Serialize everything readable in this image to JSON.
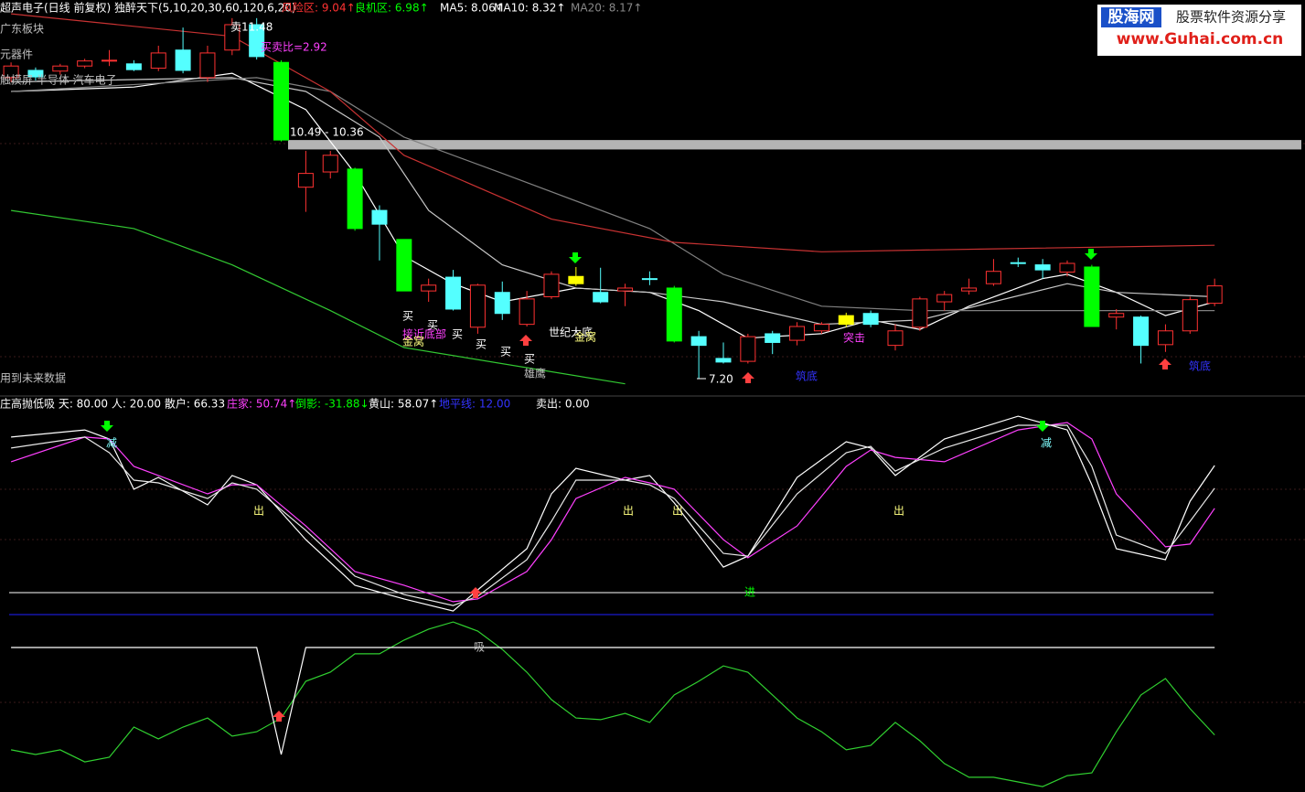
{
  "header": {
    "items": [
      "超声电子(日线 前复权) 独醉天下(5,10,20,30,60,120,6,20)",
      "风险区: 9.04↑",
      "良机区: 6.98↑",
      "MA5: 8.06↑",
      "MA10: 8.32↑",
      "MA20: 8.17↑"
    ]
  },
  "logo": {
    "name": "股海网",
    "slogan": "股票软件资源分享",
    "url": "www.Guhai.com.cn"
  },
  "chart_data": [
    {
      "type": "candlestick",
      "xlim": [
        -0.45,
        52.68
      ],
      "ylim": [
        7.0,
        12.42
      ],
      "open": [
        11.35,
        11.45,
        11.44,
        11.51,
        11.58,
        11.54,
        11.48,
        11.73,
        11.35,
        11.73,
        12.08,
        11.56,
        9.84,
        10.05,
        10.09,
        9.52,
        9.12,
        8.41,
        8.6,
        7.91,
        8.39,
        7.95,
        8.33,
        8.61,
        8.39,
        8.41,
        8.58,
        8.45,
        7.78,
        7.48,
        7.44,
        7.82,
        7.73,
        7.86,
        7.95,
        8.1,
        7.66,
        7.91,
        8.26,
        8.41,
        8.51,
        8.8,
        8.77,
        8.67,
        8.74,
        8.05,
        8.05,
        7.67,
        7.86,
        8.24
      ],
      "high": [
        11.56,
        11.49,
        11.54,
        11.61,
        11.73,
        11.59,
        11.79,
        12.04,
        11.79,
        12.17,
        12.17,
        11.59,
        10.34,
        10.34,
        10.11,
        9.59,
        9.12,
        8.58,
        8.7,
        8.51,
        8.54,
        8.41,
        8.68,
        8.74,
        8.73,
        8.51,
        8.68,
        8.48,
        7.86,
        7.7,
        7.82,
        7.86,
        7.98,
        7.98,
        8.11,
        8.14,
        7.95,
        8.33,
        8.41,
        8.58,
        8.85,
        8.87,
        8.85,
        8.83,
        8.77,
        8.16,
        8.07,
        7.95,
        8.33,
        8.58
      ],
      "low": [
        11.29,
        11.31,
        11.39,
        11.48,
        11.51,
        11.44,
        11.44,
        11.41,
        11.29,
        11.66,
        11.6,
        10.47,
        9.5,
        9.96,
        9.24,
        8.83,
        8.41,
        8.26,
        8.14,
        7.82,
        8.01,
        7.92,
        8.3,
        8.48,
        8.24,
        8.2,
        8.49,
        7.7,
        7.2,
        7.41,
        7.41,
        7.54,
        7.66,
        7.82,
        7.91,
        7.91,
        7.59,
        7.86,
        8.14,
        8.36,
        8.48,
        8.74,
        8.58,
        8.61,
        7.92,
        7.88,
        7.41,
        7.57,
        7.82,
        8.2
      ],
      "close": [
        11.51,
        11.36,
        11.51,
        11.58,
        11.59,
        11.46,
        11.69,
        11.45,
        11.69,
        12.08,
        11.64,
        10.49,
        10.03,
        10.28,
        9.27,
        9.33,
        8.41,
        8.49,
        8.16,
        8.49,
        8.1,
        8.3,
        8.64,
        8.51,
        8.26,
        8.45,
        8.58,
        7.72,
        7.66,
        7.43,
        7.78,
        7.7,
        7.92,
        7.95,
        8.07,
        7.95,
        7.86,
        8.3,
        8.36,
        8.45,
        8.68,
        8.8,
        8.7,
        8.79,
        7.92,
        8.1,
        7.66,
        7.86,
        8.29,
        8.48
      ],
      "colors": [
        "#ff3232",
        "#54ffff",
        "#ff3232",
        "#ff3232",
        "#ff3232",
        "#54ffff",
        "#ff3232",
        "#54ffff",
        "#ff3232",
        "#ff3232",
        "#54ffff",
        "#00ff00",
        "#ff3232",
        "#ff3232",
        "#00ff00",
        "#54ffff",
        "#00ff00",
        "#ff3232",
        "#54ffff",
        "#ff3232",
        "#54ffff",
        "#ff3232",
        "#ff3232",
        "#ffff00",
        "#54ffff",
        "#ff3232",
        "#54ffff",
        "#00ff00",
        "#54ffff",
        "#54ffff",
        "#ff3232",
        "#54ffff",
        "#ff3232",
        "#ff3232",
        "#ffff00",
        "#54ffff",
        "#ff3232",
        "#ff3232",
        "#ff3232",
        "#ff3232",
        "#ff3232",
        "#54ffff",
        "#54ffff",
        "#ff3232",
        "#00ff00",
        "#ff3232",
        "#54ffff",
        "#ff3232",
        "#ff3232",
        "#ff3232"
      ],
      "lines": [
        {
          "color": "#ffffff",
          "x": [
            0,
            5,
            9,
            12,
            14,
            16,
            18,
            20,
            23,
            26,
            28,
            30,
            33,
            35,
            37,
            39,
            42,
            43,
            45,
            47,
            49
          ],
          "values": [
            11.16,
            11.22,
            11.41,
            10.91,
            10.03,
            8.89,
            8.51,
            8.26,
            8.45,
            8.39,
            8.14,
            7.76,
            7.82,
            8.01,
            7.88,
            8.2,
            8.58,
            8.64,
            8.39,
            8.07,
            8.26
          ]
        },
        {
          "color": "#c8c8c8",
          "x": [
            0,
            9,
            12,
            15,
            17,
            20,
            23,
            26,
            29,
            33,
            37,
            40,
            43,
            45,
            49
          ],
          "values": [
            11.29,
            11.35,
            11.16,
            10.53,
            9.52,
            8.77,
            8.45,
            8.39,
            8.26,
            7.95,
            8.01,
            8.26,
            8.51,
            8.39,
            8.33
          ]
        },
        {
          "color": "#808080",
          "x": [
            0,
            10,
            13,
            16,
            20,
            26,
            29,
            33,
            37,
            49
          ],
          "values": [
            11.16,
            11.35,
            11.16,
            10.53,
            10.03,
            9.27,
            8.64,
            8.2,
            8.14,
            8.14
          ]
        },
        {
          "color": "#c83232",
          "x": [
            0,
            9,
            13,
            16,
            22,
            27,
            33,
            40,
            49
          ],
          "values": [
            12.23,
            11.92,
            11.16,
            10.28,
            9.4,
            9.08,
            8.95,
            8.99,
            9.04
          ]
        },
        {
          "color": "#32c832",
          "x": [
            0,
            5,
            9,
            13,
            16,
            25
          ],
          "values": [
            9.52,
            9.27,
            8.77,
            8.14,
            7.63,
            7.13
          ]
        }
      ],
      "band": {
        "values": [
          10.36,
          10.49
        ],
        "label": "10.49 - 10.36",
        "color": "#b4b4b4"
      },
      "annotations": [
        "卖11.48",
        "买卖比=2.92",
        "广东板块",
        "元器件",
        "触摸屏 半导体 汽车电子",
        "用到未来数据",
        "买",
        "买",
        "买",
        "买",
        "买",
        "买",
        "接近底部",
        "金窝",
        "世纪大底",
        "金窝",
        "雄鹰",
        "突击",
        "筑底",
        "筑底",
        "7.20"
      ]
    },
    {
      "type": "line",
      "xlim": [
        -0.45,
        52.68
      ],
      "ylim": [
        -52,
        91
      ],
      "legend": [
        "庄高抛低吸 天: 80.00 人: 20.00 散户: 66.33",
        "庄家: 50.74↑",
        "倒影: -31.88↓",
        "黄山: 58.07↑",
        "地平线: 12.00",
        "卖出: 0.00"
      ],
      "hlines": [
        {
          "value": 20,
          "color": "#ffffff"
        },
        {
          "value": 12,
          "color": "#2020ff"
        }
      ],
      "series": [
        {
          "color": "#ffffff",
          "x": [
            0,
            3,
            4,
            5,
            6,
            8,
            9,
            10,
            12,
            14,
            16,
            18,
            19,
            21,
            22,
            23,
            25,
            26,
            27,
            29,
            30,
            32,
            34,
            35,
            36,
            38,
            41,
            43,
            44,
            45,
            47,
            48,
            49
          ],
          "values": [
            76.7,
            79.3,
            76.0,
            57.7,
            62.0,
            52.0,
            62.7,
            59.3,
            39.3,
            22.7,
            17.7,
            13.3,
            21.0,
            36.0,
            56.0,
            65.3,
            61.0,
            62.7,
            52.7,
            29.3,
            33.3,
            62.0,
            75.0,
            72.7,
            62.7,
            76.0,
            84.3,
            79.3,
            59.3,
            36.0,
            32.0,
            53.3,
            66.33
          ]
        },
        {
          "color": "#ff40ff",
          "x": [
            0,
            3,
            4,
            5,
            6,
            8,
            9,
            10,
            12,
            14,
            16,
            18,
            19,
            21,
            22,
            23,
            25,
            26,
            27,
            29,
            30,
            32,
            34,
            35,
            36,
            38,
            41,
            43,
            44,
            45,
            47,
            48,
            49
          ],
          "values": [
            67.7,
            76.7,
            76.0,
            66.0,
            62.7,
            56.0,
            59.3,
            59.3,
            44.3,
            27.7,
            22.7,
            16.7,
            17.7,
            27.7,
            39.3,
            54.3,
            62.0,
            60.0,
            57.7,
            39.3,
            32.7,
            44.3,
            66.0,
            72.0,
            69.3,
            67.7,
            79.3,
            82.0,
            76.0,
            56.0,
            36.7,
            37.7,
            50.74
          ]
        },
        {
          "color": "#30d030",
          "x": [
            0,
            1,
            2,
            3,
            4,
            5,
            6,
            7,
            8,
            9,
            10,
            11,
            12,
            13,
            14,
            15,
            16,
            17,
            18,
            19,
            20,
            21,
            22,
            23,
            24,
            25,
            26,
            27,
            28,
            29,
            30,
            31,
            32,
            33,
            34,
            35,
            36,
            37,
            38,
            39,
            40,
            41,
            42,
            43,
            44,
            45,
            46,
            47,
            48,
            49
          ],
          "values": [
            -37.3,
            -39,
            -37.3,
            -41.7,
            -40,
            -29,
            -33.3,
            -29,
            -25.7,
            -32.3,
            -30.7,
            -25.7,
            -12.3,
            -9,
            -2.3,
            -2.3,
            2.7,
            6.7,
            9.3,
            6,
            -0.7,
            -9,
            -19,
            -25.7,
            -26.3,
            -24,
            -27.3,
            -17.3,
            -12.3,
            -6.7,
            -9,
            -17.3,
            -25.7,
            -30.7,
            -37.3,
            -35.7,
            -27.3,
            -34,
            -42.3,
            -47.3,
            -47.3,
            -49,
            -50.7,
            -46.7,
            -45.7,
            -30.7,
            -17.3,
            -11.3,
            -22.3,
            -31.88
          ]
        },
        {
          "color": "#e8e8e8",
          "x": [
            0,
            3,
            4,
            5,
            6,
            8,
            9,
            10,
            12,
            14,
            16,
            18,
            19,
            21,
            22,
            23,
            25,
            26,
            27,
            29,
            30,
            32,
            34,
            35,
            36,
            38,
            41,
            43,
            44,
            45,
            47,
            48,
            49
          ],
          "values": [
            72.7,
            76.7,
            71.0,
            61.0,
            60.0,
            54.3,
            60.0,
            57.7,
            42.7,
            26.0,
            19.3,
            15.3,
            18.7,
            32.0,
            46.0,
            61.0,
            61.0,
            59.3,
            54.3,
            34.3,
            33.3,
            56.0,
            71.0,
            73.3,
            64.3,
            72.7,
            81.0,
            81.0,
            66.0,
            41.0,
            34.3,
            46.0,
            58.07
          ]
        },
        {
          "color": "#ffffff",
          "x": [
            0,
            10,
            11,
            12,
            49
          ],
          "values": [
            0,
            0,
            -39,
            0,
            0
          ]
        }
      ],
      "annotations": [
        "减",
        "减",
        "出",
        "出",
        "出",
        "出",
        "进",
        "吸"
      ]
    }
  ]
}
